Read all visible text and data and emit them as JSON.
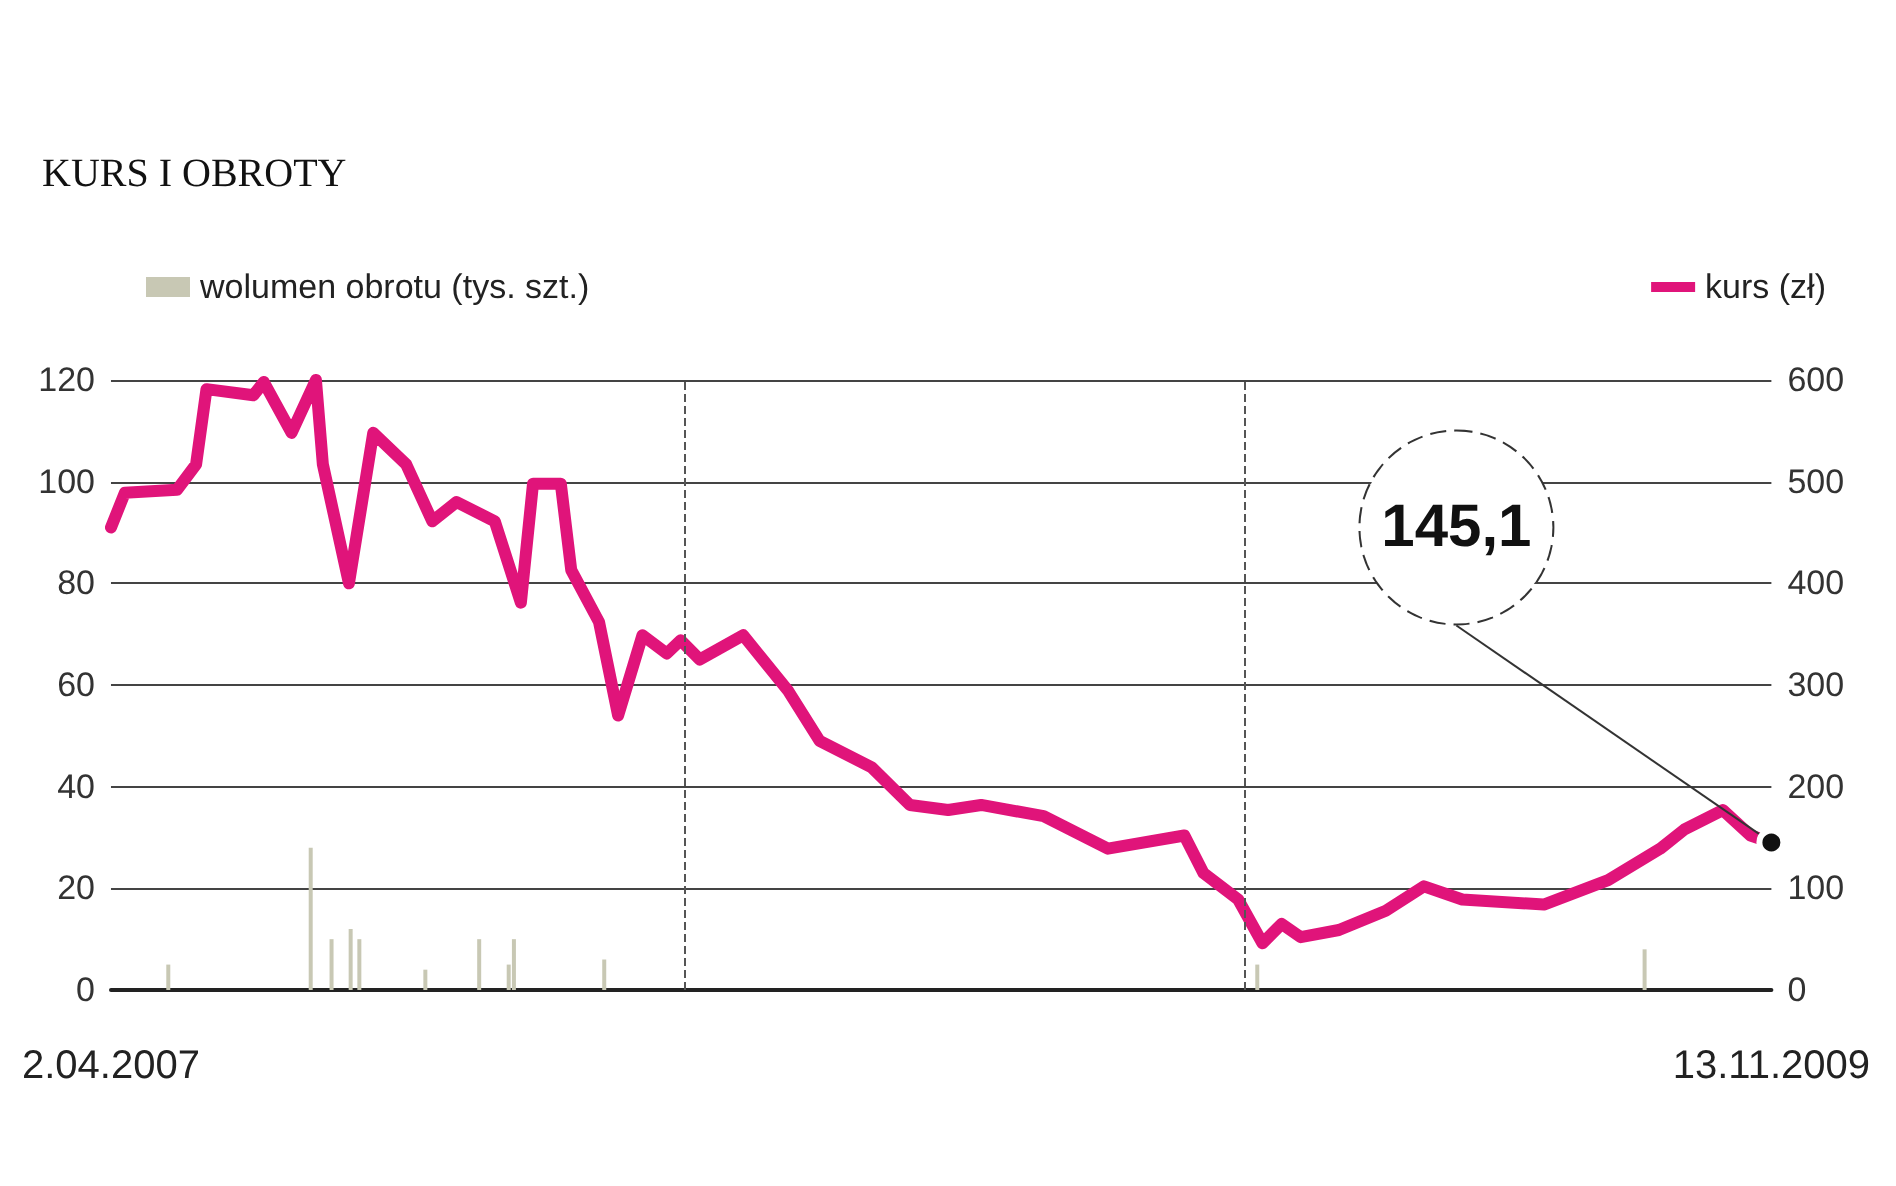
{
  "chart_data": {
    "type": "line",
    "title": "KURS I OBROTY",
    "xlim": [
      "2007-04-02",
      "2009-11-13"
    ],
    "xticks": [
      {
        "value": "2007-04-02",
        "label": "2.04.2007"
      },
      {
        "value": "2009-11-13",
        "label": "13.11.2009"
      }
    ],
    "ylim": [
      0,
      120
    ],
    "yticks": [
      0,
      20,
      40,
      60,
      80,
      100,
      120
    ],
    "y2lim": [
      0,
      600
    ],
    "y2ticks": [
      0,
      100,
      200,
      300,
      400,
      500,
      600
    ],
    "grid": "y",
    "legend": "top",
    "marker": "none",
    "ref_lines": [
      {
        "axis": "x",
        "value": "2008-02-26",
        "label": null,
        "line_style": "dashed",
        "color": "#555555"
      },
      {
        "axis": "x",
        "value": "2009-01-14",
        "label": null,
        "line_style": "dashed",
        "color": "#555555"
      }
    ],
    "series": [
      {
        "name": "wolumen obrotu (tys. szt.)",
        "type": "bar",
        "color": "#c8c8b4",
        "x": [
          "2007-05-05",
          "2007-07-26",
          "2007-08-07",
          "2007-08-18",
          "2007-08-23",
          "2007-09-30",
          "2007-10-31",
          "2007-11-17",
          "2007-11-20",
          "2008-01-11",
          "2009-01-21",
          "2009-09-01"
        ],
        "values": [
          5,
          28,
          10,
          12,
          10,
          4,
          10,
          5,
          10,
          6,
          5,
          8
        ]
      },
      {
        "name": "kurs (zł)",
        "axis": "y2",
        "color": "#e0147a",
        "x": [
          "2007-04-02",
          "2007-04-10",
          "2007-05-10",
          "2007-05-21",
          "2007-05-27",
          "2007-06-23",
          "2007-06-29",
          "2007-07-15",
          "2007-07-29",
          "2007-08-02",
          "2007-08-17",
          "2007-08-31",
          "2007-09-19",
          "2007-10-04",
          "2007-10-18",
          "2007-11-09",
          "2007-11-24",
          "2007-12-01",
          "2007-12-17",
          "2007-12-23",
          "2008-01-08",
          "2008-01-19",
          "2008-02-02",
          "2008-02-16",
          "2008-02-24",
          "2008-03-06",
          "2008-03-31",
          "2008-04-26",
          "2008-05-14",
          "2008-06-13",
          "2008-07-05",
          "2008-07-27",
          "2008-08-15",
          "2008-09-20",
          "2008-10-27",
          "2008-12-10",
          "2008-12-21",
          "2009-01-10",
          "2009-01-24",
          "2009-02-04",
          "2009-02-15",
          "2009-03-09",
          "2009-04-05",
          "2009-04-27",
          "2009-05-19",
          "2009-07-05",
          "2009-08-11",
          "2009-09-10",
          "2009-09-24",
          "2009-10-16",
          "2009-11-01",
          "2009-11-13"
        ],
        "values": [
          455,
          489,
          492,
          517,
          591,
          585,
          598,
          548,
          600,
          517,
          400,
          548,
          517,
          461,
          480,
          461,
          381,
          498,
          498,
          413,
          362,
          270,
          349,
          331,
          344,
          325,
          349,
          294,
          245,
          219,
          182,
          177,
          182,
          171,
          139,
          152,
          115,
          89,
          46,
          65,
          52,
          59,
          78,
          102,
          89,
          84,
          108,
          139,
          158,
          177,
          152,
          145.1
        ],
        "value_labels": [
          null,
          null,
          null,
          null,
          null,
          null,
          null,
          null,
          null,
          null,
          null,
          null,
          null,
          null,
          null,
          null,
          null,
          null,
          null,
          null,
          null,
          null,
          null,
          null,
          null,
          null,
          null,
          null,
          null,
          null,
          null,
          null,
          null,
          null,
          null,
          null,
          null,
          null,
          null,
          null,
          null,
          null,
          null,
          null,
          null,
          null,
          null,
          null,
          null,
          null,
          null,
          "145,1"
        ]
      }
    ]
  }
}
